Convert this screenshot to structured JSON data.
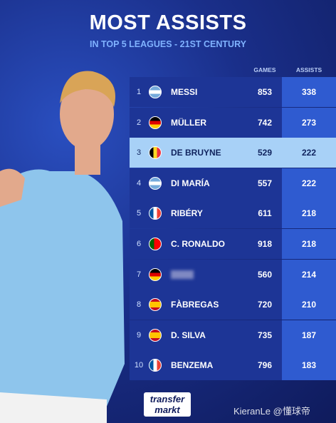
{
  "header": {
    "title": "MOST ASSISTS",
    "subtitle": "IN TOP 5 LEAGUES - 21ST CENTURY"
  },
  "table": {
    "columns": [
      "GAMES",
      "ASSISTS"
    ],
    "rows": [
      {
        "rank": 1,
        "name": "MESSI",
        "games": 853,
        "assists": 338
      },
      {
        "rank": 2,
        "name": "MÜLLER",
        "games": 742,
        "assists": 273
      },
      {
        "rank": 3,
        "name": "DE BRUYNE",
        "games": 529,
        "assists": 222
      },
      {
        "rank": 4,
        "name": "DI MARÍA",
        "games": 557,
        "assists": 222
      },
      {
        "rank": 5,
        "name": "RIBÉRY",
        "games": 611,
        "assists": 218
      },
      {
        "rank": 6,
        "name": "C. RONALDO",
        "games": 918,
        "assists": 218
      },
      {
        "rank": 7,
        "name": null,
        "games": 560,
        "assists": 214
      },
      {
        "rank": 8,
        "name": "FÀBREGAS",
        "games": 720,
        "assists": 210
      },
      {
        "rank": 9,
        "name": "D. SILVA",
        "games": 735,
        "assists": 187
      },
      {
        "rank": 10,
        "name": "BENZEMA",
        "games": 796,
        "assists": 183
      }
    ]
  },
  "footer": {
    "logo": [
      "transfer",
      "markt"
    ],
    "watermark": "KieranLe @懂球帝"
  }
}
